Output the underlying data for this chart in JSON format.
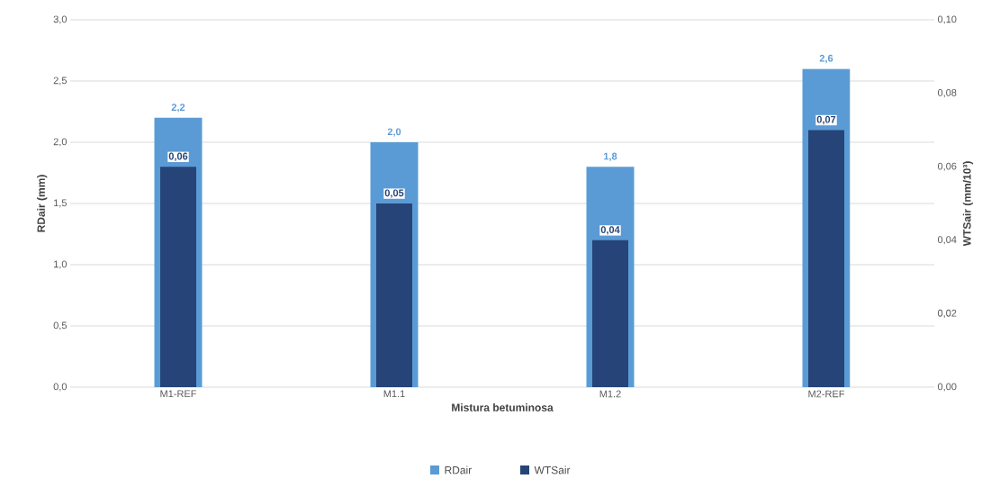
{
  "chart_data": {
    "type": "bar",
    "xlabel": "Mistura betuminosa",
    "ylabel": "RDair (mm)",
    "y2label": "WTSair (mm/10³)",
    "categories": [
      "M1-REF",
      "M1.1",
      "M1.2",
      "M2-REF"
    ],
    "series": [
      {
        "name": "RDair",
        "color": "#5b9bd5",
        "values": [
          2.2,
          2.0,
          1.8,
          2.6
        ],
        "value_labels": [
          "2,2",
          "2,0",
          "1,8",
          "2,6"
        ]
      },
      {
        "name": "WTSair",
        "color": "#264478",
        "axis": "y2",
        "values": [
          0.06,
          0.05,
          0.04,
          0.07
        ],
        "value_labels": [
          "0,06",
          "0,05",
          "0,04",
          "0,07"
        ]
      }
    ],
    "ylim": [
      0,
      3
    ],
    "yticks": [
      {
        "value": 0,
        "label": "0,0"
      },
      {
        "value": 0.5,
        "label": "0,5"
      },
      {
        "value": 1,
        "label": "1,0"
      },
      {
        "value": 1.5,
        "label": "1,5"
      },
      {
        "value": 2,
        "label": "2,0"
      },
      {
        "value": 2.5,
        "label": "2,5"
      },
      {
        "value": 3,
        "label": "3,0"
      }
    ],
    "y2lim": [
      0,
      0.1
    ],
    "y2ticks": [
      {
        "value": 0,
        "label": "0,00"
      },
      {
        "value": 0.02,
        "label": "0,02"
      },
      {
        "value": 0.04,
        "label": "0,04"
      },
      {
        "value": 0.06,
        "label": "0,06"
      },
      {
        "value": 0.08,
        "label": "0,08"
      },
      {
        "value": 0.1,
        "label": "0,10"
      }
    ],
    "grid": "y",
    "legend": "bottom"
  }
}
